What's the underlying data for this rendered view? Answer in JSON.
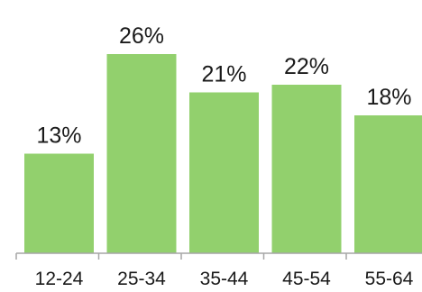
{
  "chart_data": {
    "type": "bar",
    "categories": [
      "12-24",
      "25-34",
      "35-44",
      "45-54",
      "55-64"
    ],
    "values": [
      13,
      26,
      21,
      22,
      18
    ],
    "value_labels": [
      "13%",
      "26%",
      "21%",
      "22%",
      "18%"
    ],
    "ylim": [
      0,
      30
    ],
    "grid": false,
    "legend": "none",
    "colors": {
      "bar": "#92d06d",
      "axis": "#a6a6a6"
    }
  }
}
